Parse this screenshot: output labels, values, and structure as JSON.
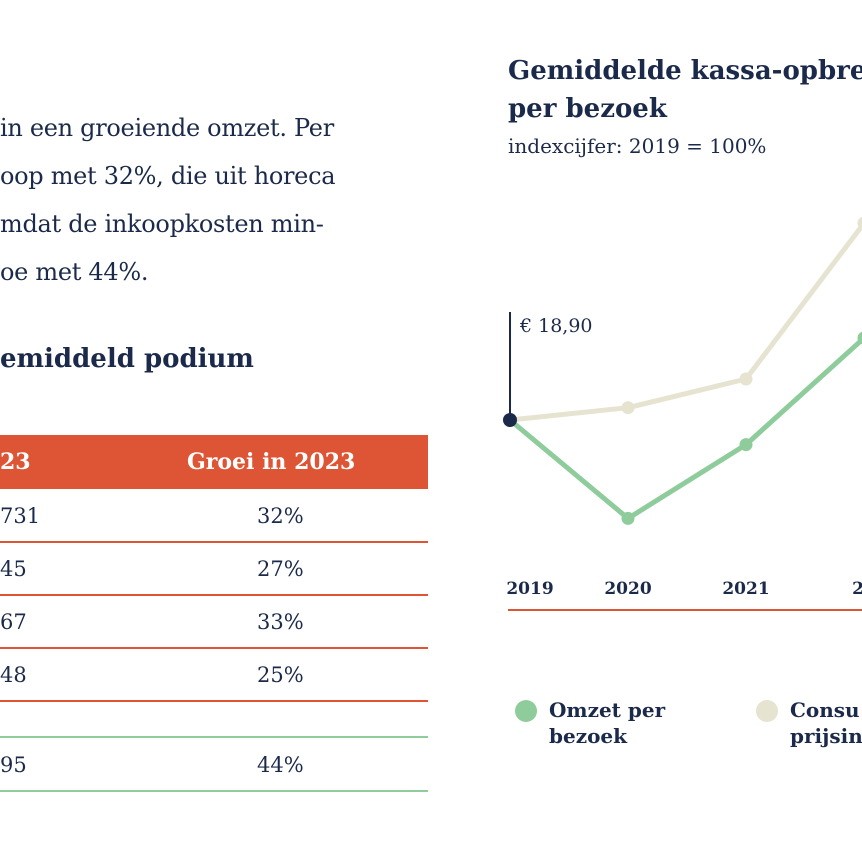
{
  "paragraph": [
    "in een groeiende omzet. Per",
    "oop met 32%, die uit horeca",
    "mdat de inkoopkosten min-",
    "oe met 44%."
  ],
  "table": {
    "heading": "emiddeld podium",
    "header": [
      "23",
      "Groei in 2023"
    ],
    "rows": [
      {
        "a": "731",
        "b": "32%"
      },
      {
        "a": "45",
        "b": "27%"
      },
      {
        "a": "67",
        "b": "33%"
      },
      {
        "a": "48",
        "b": "25%"
      },
      {
        "a": "",
        "b": ""
      },
      {
        "a": "95",
        "b": "44%"
      }
    ]
  },
  "colors": {
    "navy": "#1b2a4a",
    "orange": "#dd5535",
    "green": "#8fcc9c",
    "beige": "#e6e3d1"
  },
  "chart_data": {
    "type": "line",
    "title": "Gemiddelde kassa-opbre\nper bezoek",
    "subtitle": "indexcijfer: 2019 = 100%",
    "base_label": "€ 18,90",
    "x": [
      "2019",
      "2020",
      "2021",
      "20"
    ],
    "ylim": [
      60,
      160
    ],
    "grid": false,
    "series": [
      {
        "name": "Omzet per bezoek",
        "color": "#8fcc9c",
        "values": [
          100,
          76,
          94,
          120
        ]
      },
      {
        "name": "Consu prijsin",
        "color": "#e6e3d1",
        "values": [
          100,
          103,
          110,
          148
        ]
      }
    ],
    "legend": [
      "Omzet per bezoek",
      "Consu prijsin"
    ],
    "legend_lines": [
      [
        "Omzet per",
        "bezoek"
      ],
      [
        "Consu",
        "prijsin"
      ]
    ],
    "legend_position": "bottom"
  }
}
